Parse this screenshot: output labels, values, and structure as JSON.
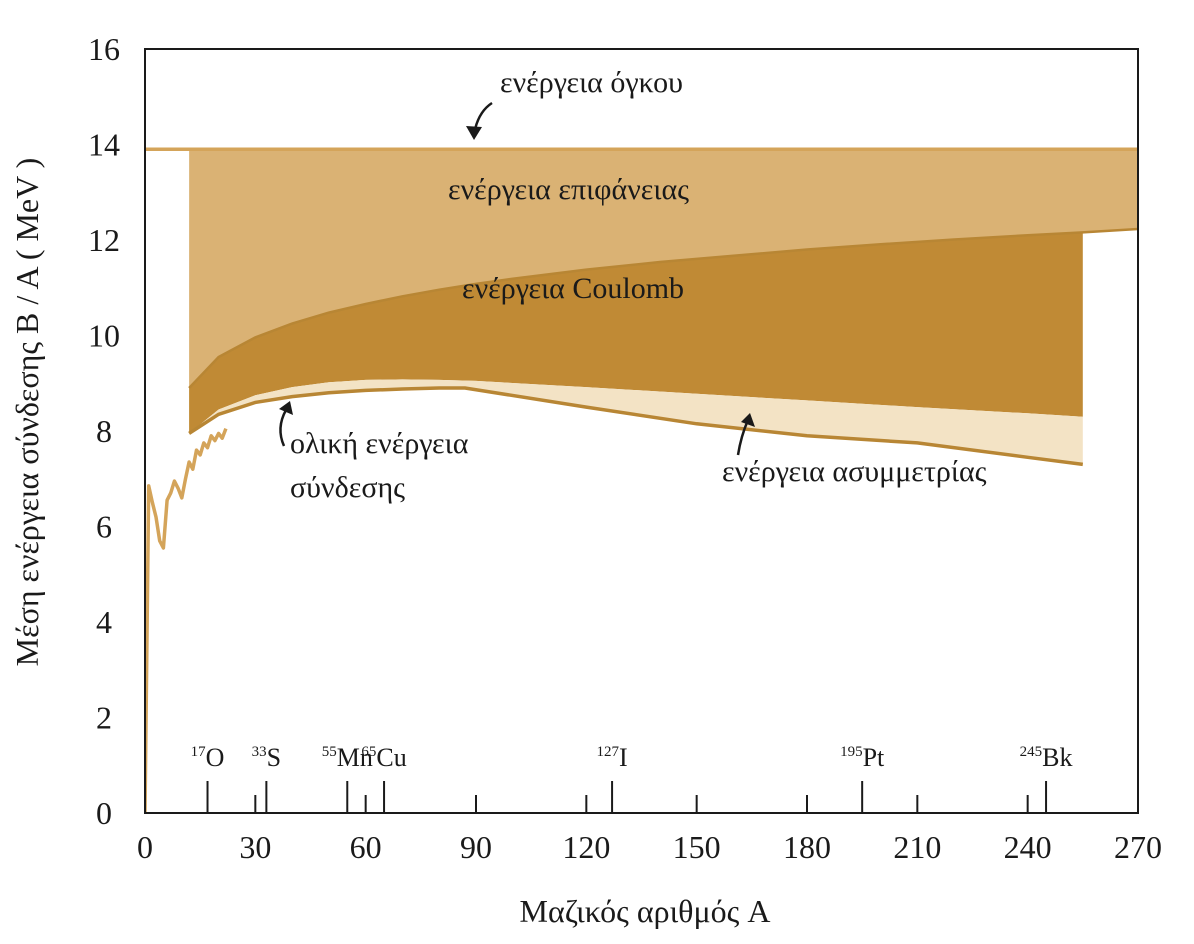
{
  "chart_data": {
    "type": "area",
    "title": "",
    "xlabel": "Μαζικός αριθμός A",
    "ylabel": "Μέση ενέργεια σύνδεσης B / A ( MeV )",
    "xlim": [
      0,
      270
    ],
    "ylim": [
      0,
      16
    ],
    "x_ticks": [
      "0",
      "30",
      "60",
      "90",
      "120",
      "150",
      "180",
      "210",
      "240",
      "270"
    ],
    "y_ticks": [
      "0",
      "2",
      "4",
      "6",
      "8",
      "10",
      "12",
      "14",
      "16"
    ],
    "grid": false,
    "series": [
      {
        "name": "ενέργεια όγκου",
        "x": [
          0,
          270
        ],
        "y": [
          13.9,
          13.9
        ]
      },
      {
        "name": "ενέργεια επιφάνειας",
        "x": [
          12,
          20,
          30,
          40,
          50,
          60,
          70,
          80,
          90,
          100,
          120,
          140,
          160,
          180,
          200,
          220,
          240,
          255,
          270
        ],
        "y": [
          8.9,
          9.55,
          9.96,
          10.25,
          10.48,
          10.66,
          10.82,
          10.96,
          11.08,
          11.19,
          11.38,
          11.54,
          11.67,
          11.8,
          11.91,
          12.01,
          12.1,
          12.16,
          12.23
        ]
      },
      {
        "name": "ενέργεια Coulomb",
        "x": [
          12,
          20,
          30,
          40,
          50,
          60,
          70,
          80,
          90,
          120,
          150,
          180,
          210,
          240,
          255
        ],
        "y": [
          7.95,
          8.45,
          8.75,
          8.92,
          9.02,
          9.07,
          9.08,
          9.07,
          9.05,
          8.92,
          8.78,
          8.64,
          8.5,
          8.37,
          8.3
        ]
      },
      {
        "name": "ενέργεια ασυμμετρίας",
        "x": [
          12,
          20,
          30,
          40,
          50,
          60,
          70,
          80,
          87,
          120,
          150,
          180,
          210,
          240,
          255
        ],
        "y": [
          7.95,
          8.35,
          8.6,
          8.72,
          8.8,
          8.85,
          8.88,
          8.9,
          8.9,
          8.5,
          8.15,
          7.9,
          7.75,
          7.45,
          7.3
        ]
      },
      {
        "name": "ολική ενέργεια σύνδεσης",
        "x": [
          0,
          1,
          2,
          3,
          4,
          5,
          6,
          7,
          8,
          9,
          10,
          11,
          12,
          13,
          14,
          15,
          16,
          17,
          18,
          19,
          20,
          21,
          22
        ],
        "y": [
          0,
          6.85,
          6.5,
          6.2,
          5.7,
          5.55,
          6.55,
          6.7,
          6.95,
          6.8,
          6.6,
          7.0,
          7.35,
          7.2,
          7.6,
          7.5,
          7.75,
          7.65,
          7.9,
          7.8,
          7.95,
          7.85,
          8.05
        ]
      }
    ],
    "annotations": {
      "volume": "ενέργεια όγκου",
      "surface": "ενέργεια επιφάνειας",
      "coulomb": "ενέργεια Coulomb",
      "total_line1": "ολική ενέργεια",
      "total_line2": "σύνδεσης",
      "asymmetry": "ενέργεια ασυμμετρίας"
    },
    "nuclides": [
      {
        "mass": "17",
        "symbol": "O",
        "a": 17
      },
      {
        "mass": "33",
        "symbol": "S",
        "a": 33
      },
      {
        "mass": "55",
        "symbol": "Mn",
        "a": 55
      },
      {
        "mass": "65",
        "symbol": "Cu",
        "a": 65
      },
      {
        "mass": "127",
        "symbol": "I",
        "a": 127
      },
      {
        "mass": "195",
        "symbol": "Pt",
        "a": 195
      },
      {
        "mass": "245",
        "symbol": "Bk",
        "a": 245
      }
    ],
    "minor_ticks": [
      30,
      60,
      90,
      120,
      150,
      180,
      210,
      240
    ],
    "colors": {
      "volume_line": "#d4a45a",
      "surface_fill": "#dab274",
      "coulomb_fill": "#c08a35",
      "asymmetry_fill": "#f3e3c5",
      "total_line": "#d4a45a",
      "edge": "#b88634",
      "axis": "#1a1a1a"
    }
  }
}
